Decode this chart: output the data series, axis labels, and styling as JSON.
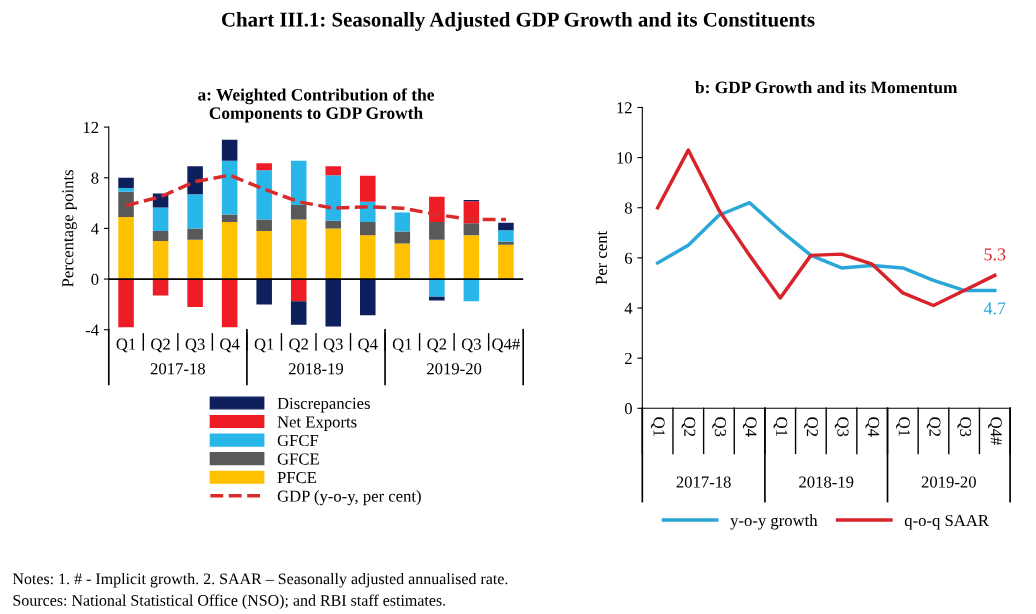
{
  "chart_data": [
    {
      "type": "other",
      "title": "Chart III.1: Seasonally Adjusted GDP Growth and its Constituents",
      "annotations": [
        "Notes: 1. # - Implicit growth. 2. SAAR – Seasonally adjusted annualised rate.",
        "Sources: National Statistical Office (NSO); and RBI staff estimates."
      ]
    },
    {
      "type": "bar",
      "title": "a: Weighted Contribution of the\nComponents to GDP Growth",
      "ylabel": "Percentage points",
      "stacked": true,
      "categories": [
        "Q1",
        "Q2",
        "Q3",
        "Q4",
        "Q1",
        "Q2",
        "Q3",
        "Q4",
        "Q1",
        "Q2",
        "Q3",
        "Q4#"
      ],
      "series": [
        {
          "name": "PFCE",
          "color": "#ffc000",
          "values": [
            4.9,
            3.0,
            3.1,
            4.5,
            3.8,
            4.7,
            4.0,
            3.45,
            2.8,
            3.1,
            3.45,
            2.7
          ]
        },
        {
          "name": "GFCE",
          "color": "#595959",
          "values": [
            2.0,
            0.8,
            0.9,
            0.6,
            0.9,
            1.15,
            0.6,
            1.05,
            0.95,
            1.4,
            0.95,
            0.25
          ]
        },
        {
          "name": "GFCF",
          "color": "#29b6e8",
          "values": [
            0.3,
            1.85,
            2.7,
            4.25,
            3.9,
            3.5,
            3.6,
            1.6,
            1.5,
            -1.4,
            -1.75,
            0.9
          ]
        },
        {
          "name": "Net Exports",
          "color": "#ee1c25",
          "values": [
            -3.8,
            -1.3,
            -2.2,
            -3.8,
            0.55,
            -1.75,
            0.7,
            2.05,
            null,
            2.0,
            1.75,
            null
          ]
        },
        {
          "name": "Discrepancies",
          "color": "#0d1f5c",
          "values": [
            0.8,
            1.1,
            2.2,
            1.65,
            -2.0,
            -1.85,
            -3.75,
            -2.85,
            null,
            -0.3,
            0.1,
            0.6
          ]
        },
        {
          "name": "GDP (y-o-y, per cent)",
          "type": "line",
          "line_style": "dashed",
          "color": "#d92b2b",
          "values": [
            5.8,
            6.5,
            7.7,
            8.2,
            7.1,
            6.1,
            5.6,
            5.7,
            5.6,
            5.1,
            4.7,
            4.7
          ]
        }
      ],
      "ylim": [
        -4,
        12
      ],
      "yticks": [
        -4,
        0,
        4,
        8,
        12
      ],
      "legend": "bottom",
      "annotations": [
        "2017-18",
        "2018-19",
        "2019-20"
      ]
    },
    {
      "type": "line",
      "title": "b: GDP Growth and its Momentum",
      "ylabel": "Per cent",
      "categories": [
        "Q1",
        "Q2",
        "Q3",
        "Q4",
        "Q1",
        "Q2",
        "Q3",
        "Q4",
        "Q1",
        "Q2",
        "Q3",
        "Q4#"
      ],
      "series": [
        {
          "name": "y-o-y growth",
          "color": "#2aa7d8",
          "values": [
            5.8,
            6.5,
            7.7,
            8.2,
            7.1,
            6.1,
            5.6,
            5.7,
            5.6,
            5.1,
            4.7,
            4.7
          ],
          "value_labels": [
            null,
            null,
            null,
            null,
            null,
            null,
            null,
            null,
            null,
            null,
            null,
            "4.7"
          ]
        },
        {
          "name": "q-o-q SAAR",
          "color": "#d8232a",
          "values": [
            8.0,
            10.3,
            7.9,
            6.1,
            4.4,
            6.1,
            6.15,
            5.75,
            4.6,
            4.1,
            4.7,
            5.3
          ],
          "value_labels": [
            null,
            null,
            null,
            null,
            null,
            null,
            null,
            null,
            null,
            null,
            null,
            "5.3"
          ]
        }
      ],
      "ylim": [
        0,
        12
      ],
      "yticks": [
        0,
        2,
        4,
        6,
        8,
        10,
        12
      ],
      "legend": "bottom",
      "annotations": [
        "2017-18",
        "2018-19",
        "2019-20"
      ]
    }
  ]
}
